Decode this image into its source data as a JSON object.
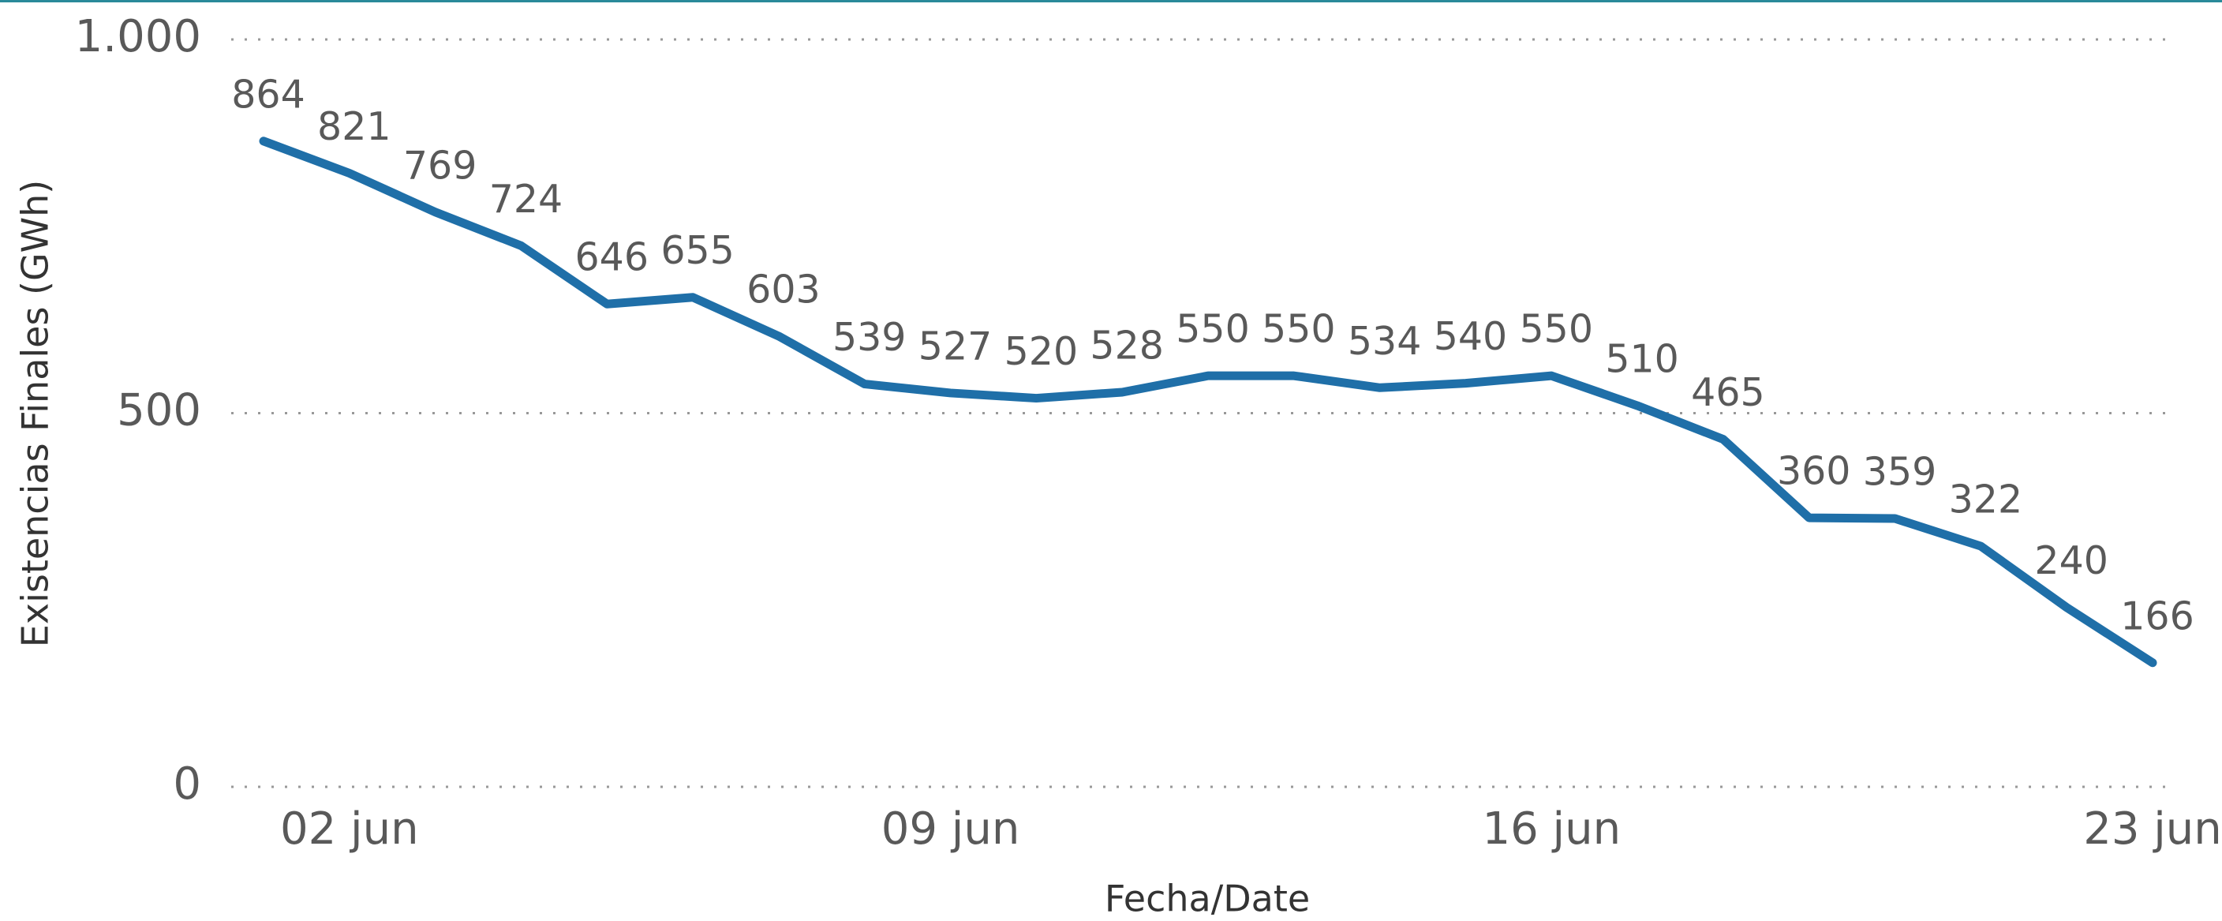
{
  "chart_data": {
    "type": "line",
    "x_label": "Fecha/Date",
    "y_label": "Existencias Finales (GWh)",
    "categories": [
      null,
      "02 jun",
      null,
      null,
      null,
      null,
      null,
      null,
      "09 jun",
      null,
      null,
      null,
      null,
      null,
      null,
      "16 jun",
      null,
      null,
      null,
      null,
      null,
      null,
      "23 jun"
    ],
    "series": [
      {
        "name": "Existencias Finales",
        "color": "#1f6fa8",
        "values": [
          864,
          821,
          769,
          724,
          646,
          655,
          603,
          539,
          527,
          520,
          528,
          550,
          550,
          534,
          540,
          550,
          510,
          465,
          360,
          359,
          322,
          240,
          166
        ]
      }
    ],
    "ylim": [
      0,
      1000
    ],
    "yticks": [
      0,
      500,
      {
        "value": 1000,
        "label": "1.000"
      }
    ],
    "grid": true
  }
}
